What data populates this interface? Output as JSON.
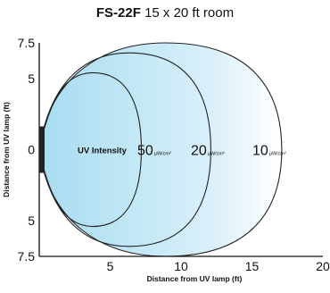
{
  "title": {
    "model": "FS-22F",
    "subtitle": "15 x 20 ft room"
  },
  "chart_data": {
    "type": "diagram",
    "xlabel": "Distance from UV lamp (ft)",
    "ylabel": "Distance from UV lamp (ft)",
    "xlim": [
      0,
      20
    ],
    "ylim": [
      -7.5,
      7.5
    ],
    "x_ticks": [
      "5",
      "10",
      "15",
      "20"
    ],
    "y_ticks": [
      "7.5",
      "5",
      "0",
      "5",
      "7.5"
    ],
    "intensity_label": "UV Intensity",
    "unit": "μW/cm²",
    "contours": [
      {
        "value": "50",
        "reach_ft": 7.2,
        "half_width_ft": 5.4
      },
      {
        "value": "20",
        "reach_ft": 12.1,
        "half_width_ft": 6.8
      },
      {
        "value": "10",
        "reach_ft": 17.1,
        "half_width_ft": 7.5
      }
    ],
    "colors": {
      "fill_start": "#a7dcf1",
      "fill_end": "#ffffff",
      "stroke": "#222222",
      "lamp": "#222222"
    }
  }
}
